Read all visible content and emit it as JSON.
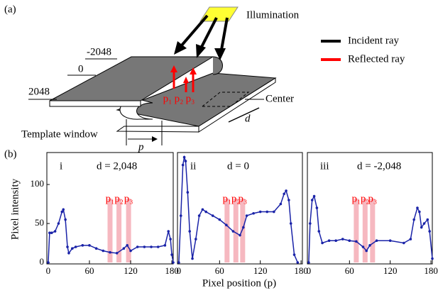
{
  "figure": {
    "panel_labels": [
      "(a)",
      "(b)"
    ],
    "xlabel": "Pixel position (p)",
    "ylabel": "Pixel intensity"
  },
  "diagram": {
    "illumination": "Illumination",
    "legend": [
      {
        "label": "Incident ray",
        "color": "#000000"
      },
      {
        "label": "Reflected ray",
        "color": "#ff0000"
      }
    ],
    "scale_labels": [
      "-2048",
      "0",
      "2048"
    ],
    "center": "Center",
    "d": "d",
    "p": "p",
    "template_window": "Template window",
    "points": [
      "p₁",
      "p₂",
      "p₃"
    ]
  },
  "chart_data": [
    {
      "type": "line",
      "label": "i",
      "title": "d = 2,048",
      "color": "#1a23a8",
      "xlim": [
        -2,
        182
      ],
      "ylim": [
        0,
        141
      ],
      "xticks": [
        0,
        60,
        120,
        180
      ],
      "yticks": [
        0,
        50,
        100
      ],
      "bands": [
        {
          "x": 90,
          "label": "p₁"
        },
        {
          "x": 103,
          "label": "p₂"
        },
        {
          "x": 117,
          "label": "p₃"
        }
      ],
      "x": [
        0,
        2,
        5,
        10,
        15,
        20,
        22,
        25,
        28,
        30,
        35,
        40,
        50,
        60,
        70,
        80,
        90,
        100,
        110,
        115,
        120,
        130,
        140,
        150,
        160,
        170,
        175,
        178,
        180,
        182
      ],
      "values": [
        0,
        38,
        38,
        40,
        50,
        65,
        68,
        55,
        20,
        12,
        18,
        20,
        22,
        22,
        18,
        15,
        13,
        12,
        18,
        22,
        15,
        20,
        20,
        20,
        20,
        22,
        40,
        30,
        10,
        0
      ]
    },
    {
      "type": "line",
      "label": "ii",
      "title": "d = 0",
      "color": "#1a23a8",
      "xlim": [
        -2,
        182
      ],
      "ylim": [
        0,
        141
      ],
      "xticks": [
        0,
        60,
        120,
        180
      ],
      "bands": [
        {
          "x": 71,
          "label": "p₁"
        },
        {
          "x": 84,
          "label": "p₂"
        },
        {
          "x": 94,
          "label": "p₃"
        }
      ],
      "x": [
        0,
        3,
        6,
        8,
        10,
        13,
        16,
        20,
        25,
        30,
        35,
        40,
        50,
        60,
        70,
        80,
        90,
        95,
        100,
        110,
        120,
        130,
        140,
        150,
        155,
        158,
        162,
        165,
        170,
        175
      ],
      "values": [
        0,
        60,
        125,
        135,
        130,
        90,
        40,
        5,
        30,
        60,
        68,
        65,
        60,
        55,
        48,
        40,
        35,
        45,
        60,
        63,
        65,
        65,
        65,
        75,
        88,
        92,
        80,
        50,
        10,
        0
      ]
    },
    {
      "type": "line",
      "label": "iii",
      "title": "d = -2,048",
      "color": "#1a23a8",
      "xlim": [
        -2,
        182
      ],
      "ylim": [
        0,
        141
      ],
      "xticks": [
        0,
        60,
        120,
        180
      ],
      "bands": [
        {
          "x": 70,
          "label": "p₁"
        },
        {
          "x": 83,
          "label": "p₂"
        },
        {
          "x": 94,
          "label": "p₃"
        }
      ],
      "x": [
        0,
        2,
        5,
        8,
        12,
        15,
        20,
        30,
        40,
        50,
        60,
        70,
        80,
        85,
        90,
        100,
        120,
        140,
        150,
        155,
        160,
        163,
        166,
        170,
        175,
        178,
        182
      ],
      "values": [
        0,
        50,
        80,
        85,
        70,
        40,
        25,
        28,
        28,
        30,
        28,
        27,
        20,
        15,
        22,
        28,
        28,
        25,
        30,
        55,
        70,
        65,
        45,
        50,
        55,
        40,
        5
      ]
    }
  ]
}
